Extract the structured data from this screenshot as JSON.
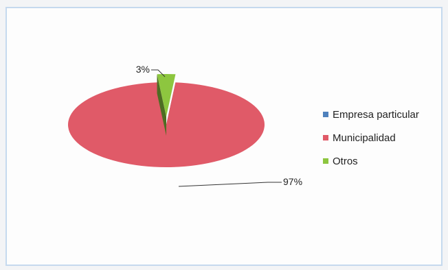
{
  "chart_data": {
    "type": "pie",
    "style": "3d",
    "categories": [
      "Empresa particular",
      "Municipalidad",
      "Otros"
    ],
    "values": [
      0,
      97,
      3
    ],
    "data_labels": [
      "",
      "97%",
      "3%"
    ],
    "colors": [
      "#4f81bd",
      "#e05a68",
      "#8dc63f"
    ],
    "exploded": "Otros",
    "legend_position": "right"
  }
}
